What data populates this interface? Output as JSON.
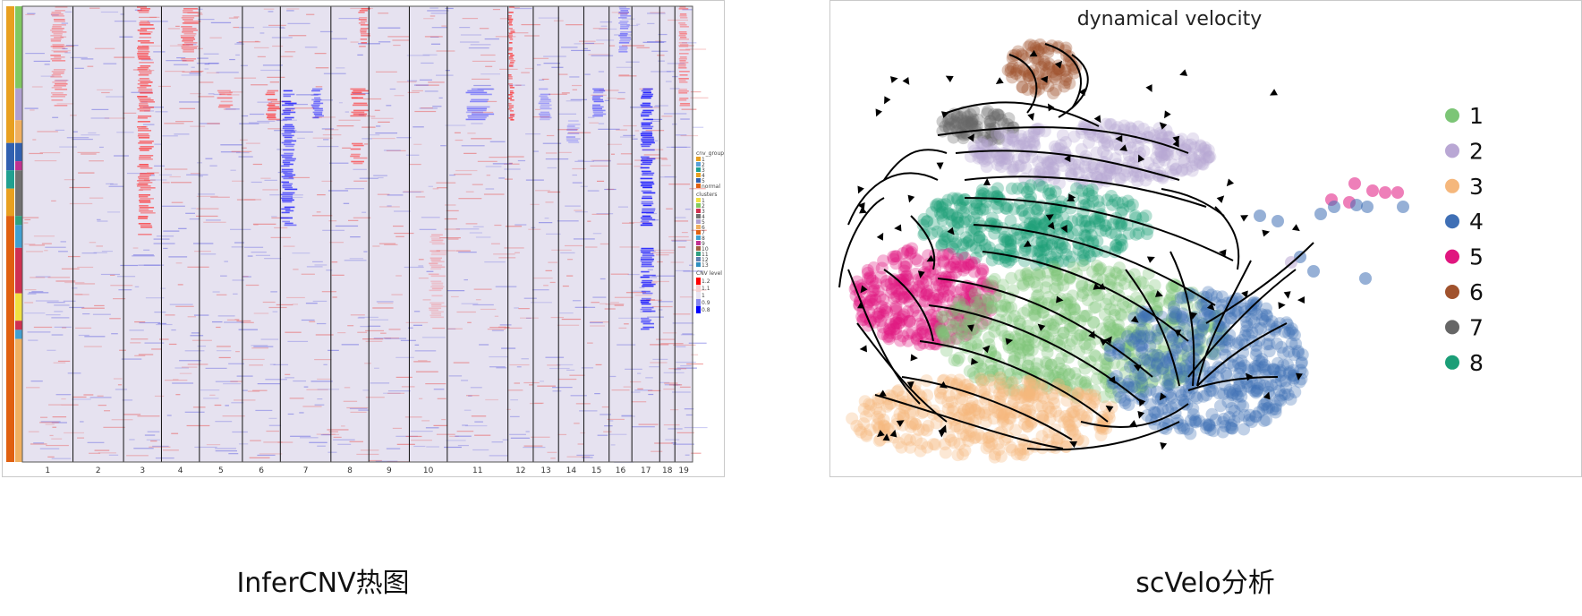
{
  "captions": {
    "left": "InferCNV热图",
    "right": "scVelo分析"
  },
  "heatmap": {
    "chromosomes": [
      "1",
      "2",
      "3",
      "4",
      "5",
      "6",
      "7",
      "8",
      "9",
      "10",
      "11",
      "12",
      "13",
      "14",
      "15",
      "16",
      "17",
      "18",
      "19"
    ],
    "legend": {
      "cnv_group_title": "cnv_group",
      "cnv_group_items": [
        {
          "label": "1",
          "color": "#e8a020"
        },
        {
          "label": "2",
          "color": "#5aa0d8"
        },
        {
          "label": "3",
          "color": "#20a090"
        },
        {
          "label": "4",
          "color": "#e8a020"
        },
        {
          "label": "5",
          "color": "#3060b0"
        },
        {
          "label": "normal",
          "color": "#e06010"
        }
      ],
      "clusters_title": "clusters",
      "cluster_items": [
        {
          "label": "1",
          "color": "#f0e040"
        },
        {
          "label": "2",
          "color": "#80c860"
        },
        {
          "label": "3",
          "color": "#d03050"
        },
        {
          "label": "4",
          "color": "#707070"
        },
        {
          "label": "5",
          "color": "#b0a0d0"
        },
        {
          "label": "6",
          "color": "#f0b060"
        },
        {
          "label": "7",
          "color": "#e06010"
        },
        {
          "label": "8",
          "color": "#40a0d0"
        },
        {
          "label": "9",
          "color": "#c03090"
        },
        {
          "label": "10",
          "color": "#a06040"
        },
        {
          "label": "11",
          "color": "#30a080"
        },
        {
          "label": "12",
          "color": "#6080b0"
        },
        {
          "label": "13",
          "color": "#3090c0"
        }
      ],
      "cnv_level_title": "CNV level",
      "cnv_level_ticks": [
        "1.2",
        "1.1",
        "1",
        "0.9",
        "0.8"
      ],
      "cnv_level_colors": [
        "#ff0000",
        "#f4d0d0",
        "#e8e4f0",
        "#8888ee",
        "#0000ff"
      ]
    }
  },
  "velocity": {
    "title": "dynamical velocity",
    "legend": [
      {
        "label": "1",
        "color": "#7cc576"
      },
      {
        "label": "2",
        "color": "#b9a7d4"
      },
      {
        "label": "3",
        "color": "#f5b77c"
      },
      {
        "label": "4",
        "color": "#3f6fb5"
      },
      {
        "label": "5",
        "color": "#e0167f"
      },
      {
        "label": "6",
        "color": "#a0522d"
      },
      {
        "label": "7",
        "color": "#666666"
      },
      {
        "label": "8",
        "color": "#1b9e77"
      }
    ]
  }
}
